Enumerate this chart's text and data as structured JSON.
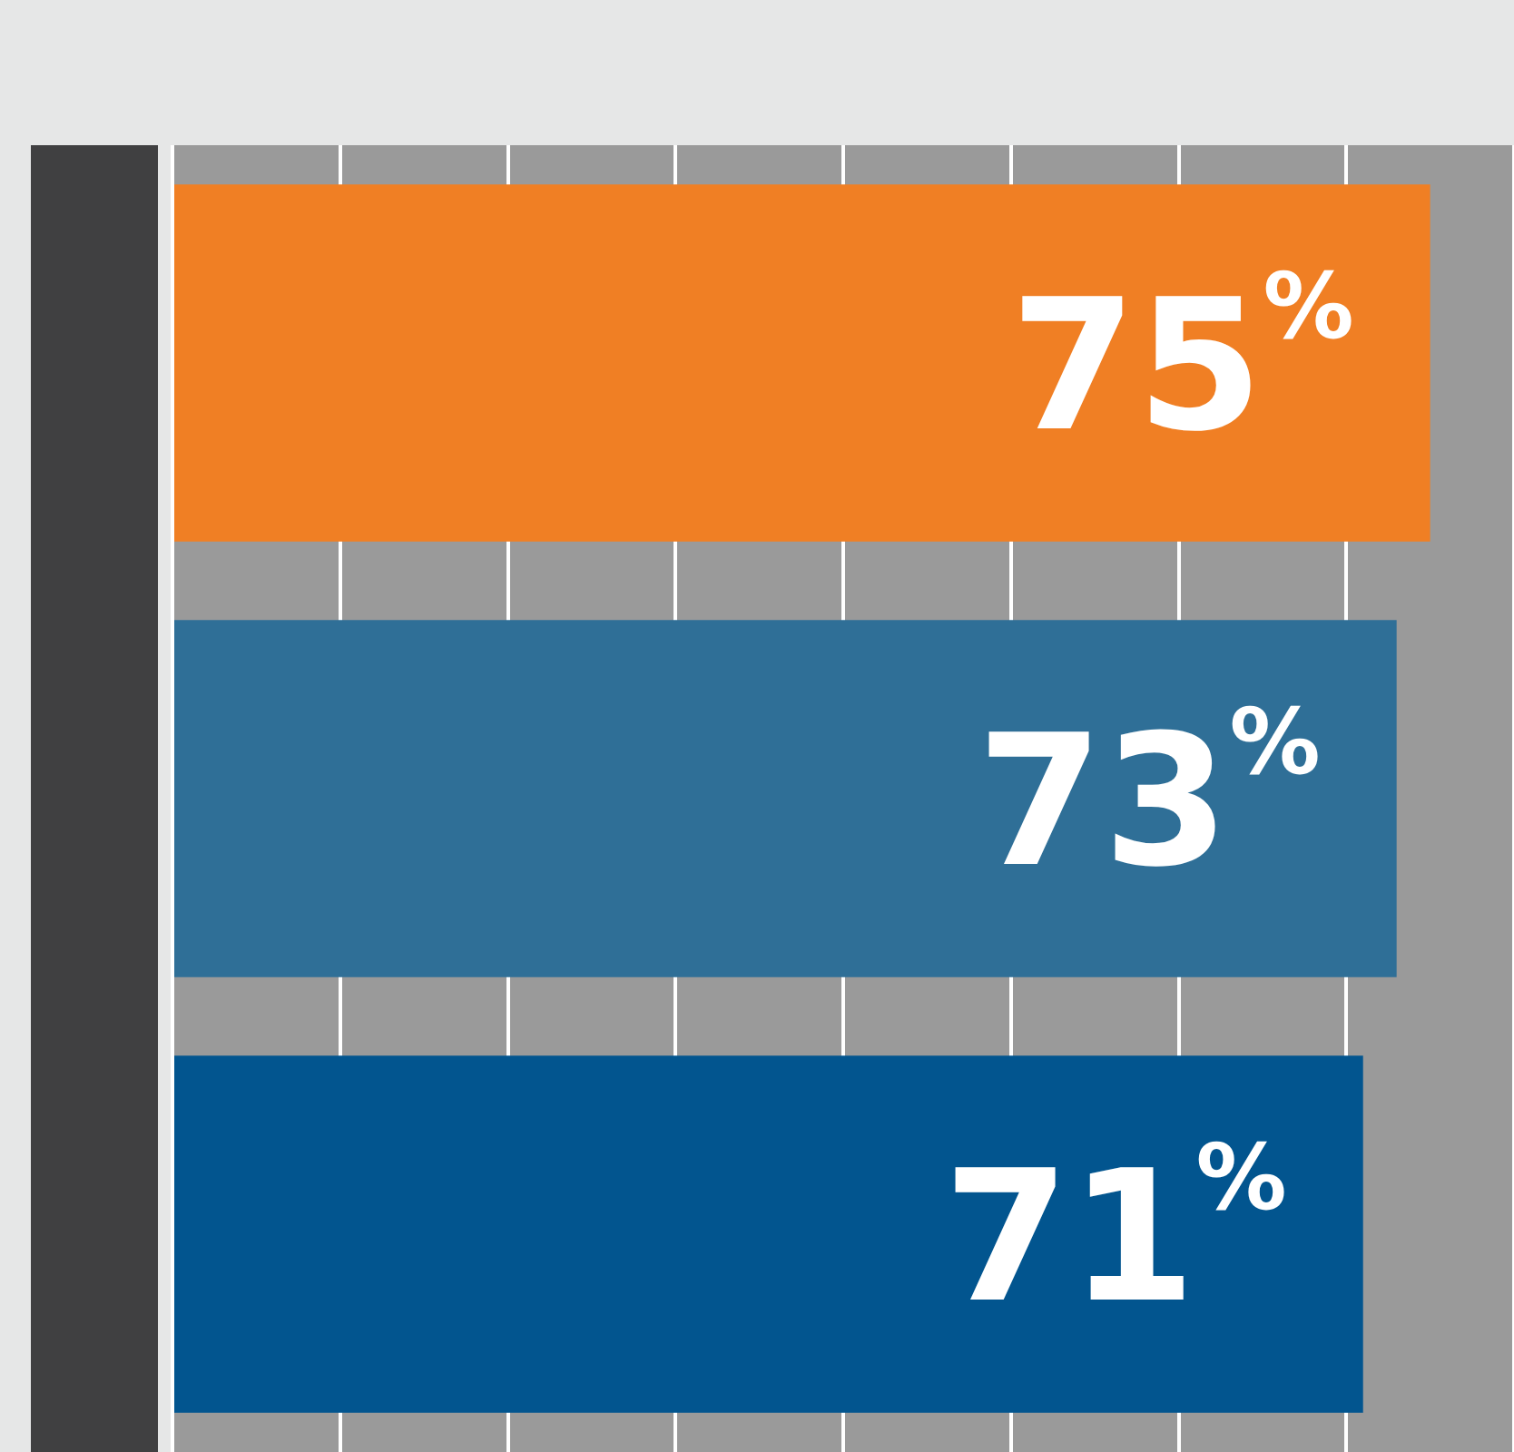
{
  "chart_data": {
    "type": "bar",
    "orientation": "horizontal",
    "categories": [
      null,
      null,
      null
    ],
    "values": [
      75,
      73,
      71
    ],
    "colors": [
      "#f07f24",
      "#2f6f97",
      "#02558f"
    ],
    "value_labels": [
      "75%",
      "73%",
      "71%"
    ],
    "grid": "x",
    "tick_labels": false,
    "legend": false
  }
}
